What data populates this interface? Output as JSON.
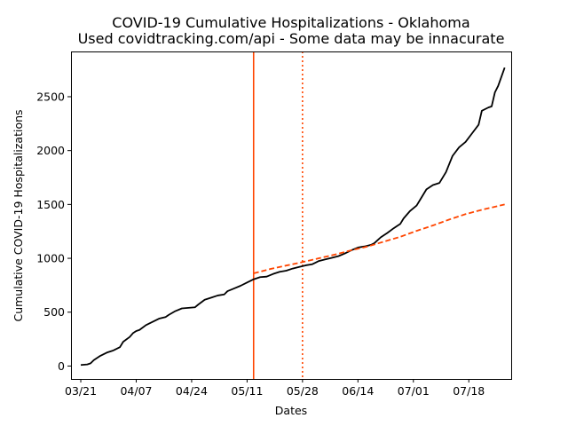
{
  "chart_data": {
    "type": "line",
    "title": "COVID-19 Cumulative Hospitalizations - Oklahoma",
    "subtitle": "Used covidtracking.com/api - Some data may be innacurate",
    "xlabel": "Dates",
    "ylabel": "Cumulative COVID-19 Hospitalizations",
    "xlim": [
      "2020-03-18",
      "2020-07-31"
    ],
    "ylim": [
      -120,
      2920
    ],
    "x_ticks": [
      "2020-03-21",
      "2020-04-07",
      "2020-04-24",
      "2020-05-11",
      "2020-05-28",
      "2020-06-14",
      "2020-07-01",
      "2020-07-18"
    ],
    "x_tick_labels": [
      "03/21",
      "04/07",
      "04/24",
      "05/11",
      "05/28",
      "06/14",
      "07/01",
      "07/18"
    ],
    "y_ticks": [
      0,
      500,
      1000,
      1500,
      2000,
      2500
    ],
    "y_tick_labels": [
      "0",
      "500",
      "1000",
      "1500",
      "2000",
      "2500"
    ],
    "grid": false,
    "series": [
      {
        "style": "solid",
        "color": "#000000",
        "points": [
          [
            "2020-03-21",
            10
          ],
          [
            "2020-03-23",
            15
          ],
          [
            "2020-03-24",
            25
          ],
          [
            "2020-03-25",
            55
          ],
          [
            "2020-03-27",
            95
          ],
          [
            "2020-03-29",
            125
          ],
          [
            "2020-03-31",
            145
          ],
          [
            "2020-04-02",
            175
          ],
          [
            "2020-04-03",
            225
          ],
          [
            "2020-04-05",
            270
          ],
          [
            "2020-04-06",
            305
          ],
          [
            "2020-04-07",
            325
          ],
          [
            "2020-04-08",
            335
          ],
          [
            "2020-04-10",
            380
          ],
          [
            "2020-04-12",
            410
          ],
          [
            "2020-04-14",
            440
          ],
          [
            "2020-04-16",
            455
          ],
          [
            "2020-04-17",
            475
          ],
          [
            "2020-04-19",
            510
          ],
          [
            "2020-04-21",
            535
          ],
          [
            "2020-04-23",
            540
          ],
          [
            "2020-04-25",
            545
          ],
          [
            "2020-04-26",
            570
          ],
          [
            "2020-04-28",
            615
          ],
          [
            "2020-04-30",
            635
          ],
          [
            "2020-05-02",
            655
          ],
          [
            "2020-05-04",
            665
          ],
          [
            "2020-05-05",
            695
          ],
          [
            "2020-05-07",
            720
          ],
          [
            "2020-05-09",
            745
          ],
          [
            "2020-05-11",
            775
          ],
          [
            "2020-05-13",
            805
          ],
          [
            "2020-05-15",
            825
          ],
          [
            "2020-05-17",
            830
          ],
          [
            "2020-05-19",
            855
          ],
          [
            "2020-05-21",
            875
          ],
          [
            "2020-05-23",
            885
          ],
          [
            "2020-05-25",
            905
          ],
          [
            "2020-05-27",
            920
          ],
          [
            "2020-05-29",
            935
          ],
          [
            "2020-05-31",
            945
          ],
          [
            "2020-06-01",
            960
          ],
          [
            "2020-06-02",
            975
          ],
          [
            "2020-06-04",
            990
          ],
          [
            "2020-06-06",
            1005
          ],
          [
            "2020-06-08",
            1020
          ],
          [
            "2020-06-10",
            1045
          ],
          [
            "2020-06-12",
            1075
          ],
          [
            "2020-06-14",
            1100
          ],
          [
            "2020-06-16",
            1110
          ],
          [
            "2020-06-18",
            1125
          ],
          [
            "2020-06-19",
            1140
          ],
          [
            "2020-06-21",
            1195
          ],
          [
            "2020-06-23",
            1235
          ],
          [
            "2020-06-25",
            1280
          ],
          [
            "2020-06-27",
            1320
          ],
          [
            "2020-06-28",
            1370
          ],
          [
            "2020-06-30",
            1440
          ],
          [
            "2020-07-02",
            1490
          ],
          [
            "2020-07-03",
            1540
          ],
          [
            "2020-07-05",
            1640
          ],
          [
            "2020-07-07",
            1680
          ],
          [
            "2020-07-09",
            1700
          ],
          [
            "2020-07-11",
            1800
          ],
          [
            "2020-07-13",
            1950
          ],
          [
            "2020-07-15",
            2030
          ],
          [
            "2020-07-17",
            2080
          ],
          [
            "2020-07-19",
            2160
          ],
          [
            "2020-07-21",
            2240
          ],
          [
            "2020-07-22",
            2370
          ],
          [
            "2020-07-24",
            2400
          ],
          [
            "2020-07-25",
            2410
          ],
          [
            "2020-07-26",
            2540
          ],
          [
            "2020-07-27",
            2600
          ],
          [
            "2020-07-29",
            2770
          ]
        ]
      },
      {
        "style": "dashed",
        "color": "#ff4500",
        "points": [
          [
            "2020-05-13",
            860
          ],
          [
            "2020-05-18",
            900
          ],
          [
            "2020-05-23",
            933
          ],
          [
            "2020-05-28",
            965
          ],
          [
            "2020-06-02",
            1000
          ],
          [
            "2020-06-07",
            1035
          ],
          [
            "2020-06-12",
            1075
          ],
          [
            "2020-06-17",
            1110
          ],
          [
            "2020-06-22",
            1155
          ],
          [
            "2020-06-27",
            1200
          ],
          [
            "2020-07-02",
            1255
          ],
          [
            "2020-07-07",
            1305
          ],
          [
            "2020-07-12",
            1360
          ],
          [
            "2020-07-17",
            1410
          ],
          [
            "2020-07-22",
            1450
          ],
          [
            "2020-07-29",
            1500
          ]
        ]
      }
    ],
    "vertical_lines": [
      {
        "x": "2020-05-13",
        "style": "solid",
        "color": "#ff4500"
      },
      {
        "x": "2020-05-28",
        "style": "dotted",
        "color": "#ff4500"
      }
    ]
  }
}
